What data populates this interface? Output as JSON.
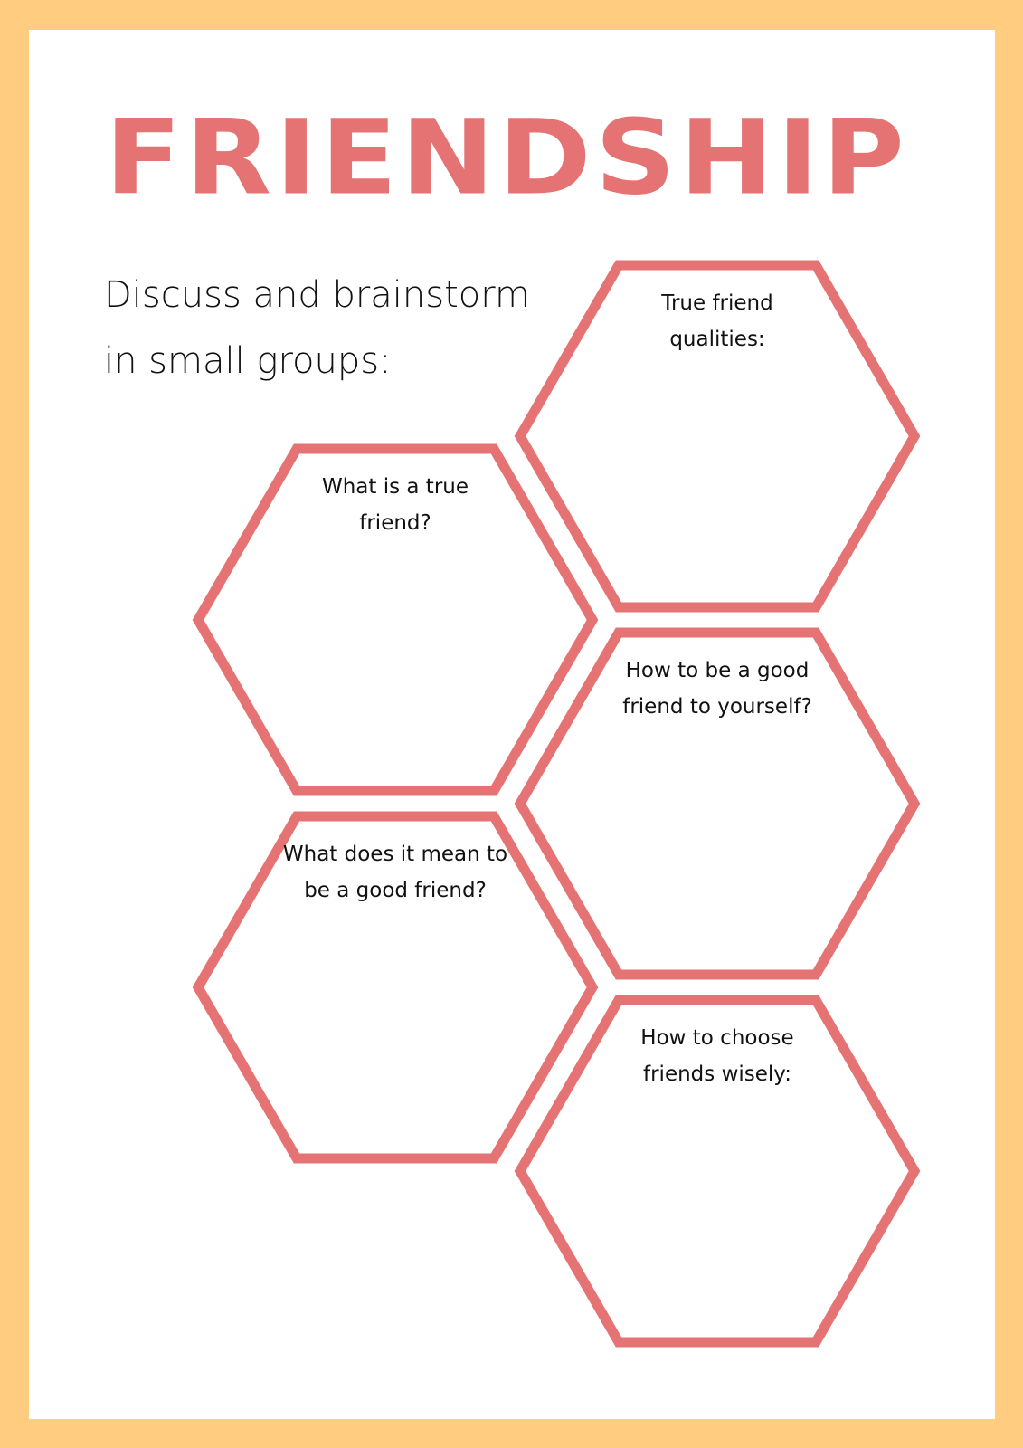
{
  "title": "FRIENDSHIP",
  "subtitle": [
    "Discuss and brainstorm",
    "in small groups:"
  ],
  "colors": {
    "border": "#FFCC80",
    "accent": "#E57373"
  },
  "hexagons": [
    {
      "lines": [
        "True friend",
        "qualities:"
      ]
    },
    {
      "lines": [
        "What is a true",
        "friend?"
      ]
    },
    {
      "lines": [
        "How to be a good",
        "friend to yourself?"
      ]
    },
    {
      "lines": [
        "What does it mean to",
        "be a good friend?"
      ]
    },
    {
      "lines": [
        "How to choose",
        "friends wisely:"
      ]
    }
  ]
}
